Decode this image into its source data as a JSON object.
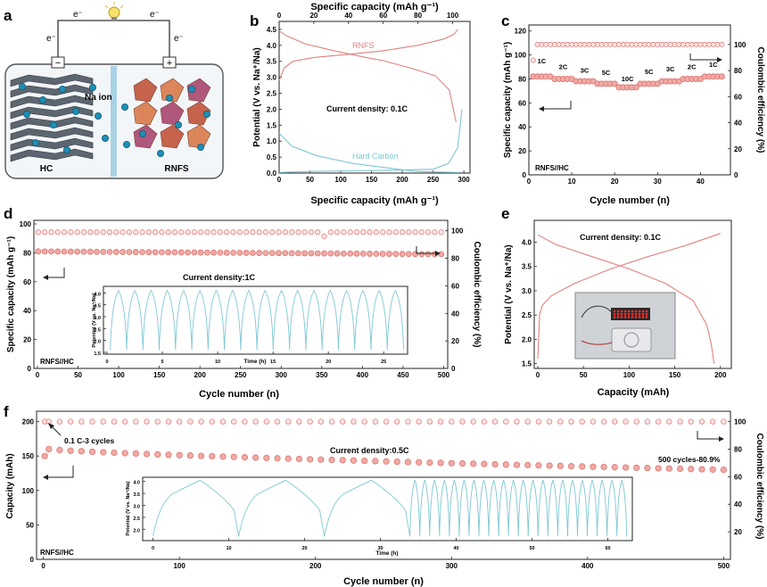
{
  "colors": {
    "red": "#e0827f",
    "redFill": "#f2aaa6",
    "blue": "#7fc7d3",
    "axis": "#222222",
    "panelBg": "#f3f6f8"
  },
  "chart_data": [
    {
      "panel": "a",
      "type": "schematic",
      "electron_labels": [
        "e⁻",
        "e⁻",
        "e⁻",
        "e⁻"
      ],
      "neg_terminal": "−",
      "pos_terminal": "+",
      "ion_label": "Na ion",
      "left_label": "HC",
      "right_label": "RNFS"
    },
    {
      "panel": "b",
      "type": "line",
      "xlabel": "Specific capacity (mAh g⁻¹)",
      "x2label": "Specific capacity (mAh g⁻¹)",
      "ylabel": "Potential (V vs. Na⁺/Na)",
      "xlim": [
        0,
        310
      ],
      "x2lim": [
        0,
        110
      ],
      "ylim": [
        0,
        4.75
      ],
      "xticks": [
        0,
        50,
        100,
        150,
        200,
        250,
        300
      ],
      "x2ticks": [
        0,
        20,
        40,
        60,
        80,
        100
      ],
      "yticks": [
        0.0,
        0.5,
        1.0,
        1.5,
        2.0,
        2.5,
        3.0,
        3.5,
        4.0,
        4.5
      ],
      "ytick_labels": [
        "0.0",
        "0.5",
        "1.0",
        "1.5",
        "2.0",
        "2.5",
        "3.0",
        "3.5",
        "4.0",
        "4.5"
      ],
      "annotation": "Current density: 0.1C",
      "series": [
        {
          "name": "RNFS",
          "axis": "top",
          "color": "red",
          "charge": [
            [
              0,
              2.9
            ],
            [
              3,
              3.3
            ],
            [
              8,
              3.5
            ],
            [
              20,
              3.62
            ],
            [
              40,
              3.72
            ],
            [
              60,
              3.83
            ],
            [
              80,
              4.0
            ],
            [
              95,
              4.2
            ],
            [
              101,
              4.36
            ],
            [
              103,
              4.5
            ]
          ],
          "discharge": [
            [
              0,
              4.45
            ],
            [
              5,
              4.28
            ],
            [
              15,
              4.05
            ],
            [
              30,
              3.85
            ],
            [
              50,
              3.62
            ],
            [
              60,
              3.52
            ],
            [
              75,
              3.3
            ],
            [
              90,
              3.05
            ],
            [
              98,
              2.6
            ],
            [
              100,
              2.1
            ],
            [
              102,
              1.6
            ]
          ]
        },
        {
          "name": "Hard Carbon",
          "axis": "bottom",
          "color": "blue",
          "charge": [
            [
              0,
              0.02
            ],
            [
              50,
              0.05
            ],
            [
              120,
              0.07
            ],
            [
              180,
              0.09
            ],
            [
              250,
              0.12
            ],
            [
              275,
              0.3
            ],
            [
              290,
              0.8
            ],
            [
              297,
              2.0
            ]
          ],
          "discharge": [
            [
              0,
              1.25
            ],
            [
              20,
              0.85
            ],
            [
              60,
              0.55
            ],
            [
              120,
              0.3
            ],
            [
              180,
              0.15
            ],
            [
              220,
              0.06
            ],
            [
              260,
              0.03
            ],
            [
              292,
              0.02
            ]
          ]
        }
      ]
    },
    {
      "panel": "c",
      "type": "scatter",
      "xlabel": "Cycle number (n)",
      "ylabel": "Specific capacity (mAh g⁻¹)",
      "y2label": "Coulombic efficiency (%)",
      "xlim": [
        0,
        47
      ],
      "ylim": [
        0,
        125
      ],
      "y2lim": [
        0,
        115
      ],
      "xticks": [
        0,
        10,
        20,
        30,
        40
      ],
      "yticks": [
        0,
        20,
        40,
        60,
        80,
        100,
        120
      ],
      "y2ticks": [
        0,
        20,
        40,
        60,
        80,
        100
      ],
      "rates": [
        {
          "label": "1C",
          "x": 3,
          "value": 85
        },
        {
          "label": "2C",
          "x": 8,
          "value": 80
        },
        {
          "label": "3C",
          "x": 13,
          "value": 77
        },
        {
          "label": "5C",
          "x": 18,
          "value": 75
        },
        {
          "label": "10C",
          "x": 23,
          "value": 72
        },
        {
          "label": "5C",
          "x": 28,
          "value": 76
        },
        {
          "label": "3C",
          "x": 33,
          "value": 78
        },
        {
          "label": "2C",
          "x": 38,
          "value": 80
        },
        {
          "label": "1C",
          "x": 43,
          "value": 82
        }
      ],
      "ce_first": 88,
      "ce_value": 100,
      "capacity": [
        82,
        82,
        82,
        82,
        82,
        80,
        80,
        80,
        80,
        80,
        78,
        78,
        78,
        78,
        78,
        76,
        76,
        76,
        76,
        76,
        73,
        73,
        73,
        73,
        73,
        76,
        76,
        76,
        76,
        76,
        78,
        78,
        78,
        78,
        78,
        80,
        80,
        80,
        80,
        80,
        82,
        82,
        82,
        82,
        82
      ],
      "label": "RNFS//HC"
    },
    {
      "panel": "d",
      "type": "scatter",
      "xlabel": "Cycle number (n)",
      "ylabel": "Specific capacity (mAh g⁻¹)",
      "y2label": "Coulombic efficiency (%)",
      "xlim": [
        0,
        505
      ],
      "ylim": [
        0,
        100
      ],
      "y2lim": [
        0,
        105
      ],
      "xticks": [
        0,
        50,
        100,
        150,
        200,
        250,
        300,
        350,
        400,
        450,
        500
      ],
      "yticks": [
        0,
        20,
        40,
        60,
        80,
        100
      ],
      "y2ticks": [
        0,
        20,
        40,
        60,
        80,
        100
      ],
      "capacity_start": 81,
      "capacity_end": 79,
      "ce": 99,
      "ce_dip": {
        "x": 350,
        "value": 96
      },
      "annotation": "Current density:1C",
      "label": "RNFS//HC",
      "inset": {
        "xlabel": "Time (h)",
        "ylabel": "Potential (V vs. Na⁺/Na)",
        "xlim": [
          0,
          27
        ],
        "ylim": [
          1.5,
          4.2
        ],
        "xticks": [
          0,
          5,
          10,
          15,
          20,
          25
        ],
        "yticks": [
          1.5,
          2.0,
          2.5,
          3.0,
          3.5,
          4.0
        ],
        "cycles": 18
      }
    },
    {
      "panel": "e",
      "type": "line",
      "xlabel": "Capacity (mAh)",
      "ylabel": "Potential (V vs. Na⁺/Na)",
      "xlim": [
        0,
        210
      ],
      "ylim": [
        1.4,
        4.45
      ],
      "xticks": [
        0,
        50,
        100,
        150,
        200
      ],
      "yticks": [
        1.5,
        2.0,
        2.5,
        3.0,
        3.5,
        4.0
      ],
      "ytick_labels": [
        "1.5",
        "2.0",
        "2.5",
        "3.0",
        "3.5",
        "4.0"
      ],
      "annotation": "Current density: 0.1C",
      "charge": [
        [
          0,
          1.6
        ],
        [
          2,
          2.5
        ],
        [
          5,
          2.7
        ],
        [
          15,
          2.9
        ],
        [
          40,
          3.15
        ],
        [
          80,
          3.45
        ],
        [
          120,
          3.7
        ],
        [
          160,
          3.92
        ],
        [
          200,
          4.18
        ]
      ],
      "discharge": [
        [
          0,
          4.15
        ],
        [
          20,
          3.95
        ],
        [
          60,
          3.7
        ],
        [
          100,
          3.45
        ],
        [
          140,
          3.15
        ],
        [
          170,
          2.8
        ],
        [
          185,
          2.3
        ],
        [
          190,
          1.9
        ],
        [
          193,
          1.5
        ]
      ],
      "photo_label": "LED"
    },
    {
      "panel": "f",
      "type": "scatter",
      "xlabel": "Cycle number (n)",
      "ylabel": "Capacity (mAh)",
      "y2label": "Coulombic efficiency (%)",
      "xlim": [
        -5,
        505
      ],
      "ylim": [
        0,
        215
      ],
      "y2lim": [
        0,
        107.5
      ],
      "xticks": [
        0,
        100,
        200,
        300,
        400,
        500
      ],
      "yticks": [
        0,
        50,
        100,
        150,
        200
      ],
      "y2ticks": [
        20,
        40,
        60,
        80,
        100
      ],
      "first_capacity": 150,
      "capacity_start": 160,
      "capacity_end": 130,
      "ce": 100,
      "annotations": {
        "low_rate": "0.1 C-3 cycles",
        "rate": "Current density:0.5C",
        "retention": "500 cycles-80.9%"
      },
      "label": "RNFS//HC",
      "inset": {
        "xlabel": "Time (h)",
        "ylabel": "Potential (V vs. Na⁺/Na)",
        "xlim": [
          -1,
          63
        ],
        "ylim": [
          1.6,
          4.1
        ],
        "xticks": [
          0,
          10,
          20,
          30,
          40,
          50,
          60
        ],
        "yticks": [
          2.0,
          2.5,
          3.0,
          3.5,
          4.0
        ],
        "slow_cycles": 3,
        "fast_cycles": 22
      }
    }
  ]
}
